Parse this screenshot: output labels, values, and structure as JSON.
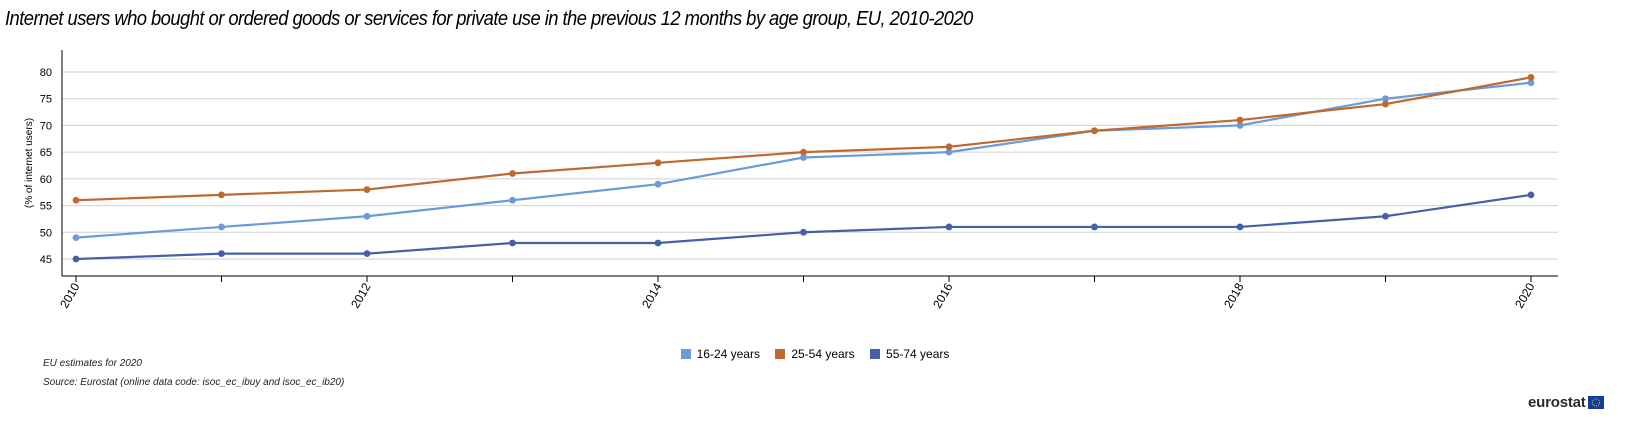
{
  "title": "Internet users who bought or ordered goods or services for private use in the previous 12 months by age group, EU, 2010-2020",
  "chart_data": {
    "type": "line",
    "x": [
      2010,
      2011,
      2012,
      2013,
      2014,
      2015,
      2016,
      2017,
      2018,
      2019,
      2020
    ],
    "xticks": [
      "2010",
      "2012",
      "2014",
      "2016",
      "2018",
      "2020"
    ],
    "yticks": [
      "45",
      "50",
      "55",
      "60",
      "65",
      "70",
      "75",
      "80"
    ],
    "ylabel": "(% of internet users)",
    "ylim": [
      42,
      84
    ],
    "grid": true,
    "legend_position": "bottom-center",
    "series": [
      {
        "name": "16-24 years",
        "color": "#6a9bd8",
        "values": [
          49,
          51,
          53,
          56,
          59,
          64,
          65,
          69,
          70,
          75,
          78
        ]
      },
      {
        "name": "25-54 years",
        "color": "#c0692e",
        "values": [
          56,
          57,
          58,
          61,
          63,
          65,
          66,
          69,
          71,
          74,
          79
        ]
      },
      {
        "name": "55-74 years",
        "color": "#4560a8",
        "values": [
          45,
          46,
          46,
          48,
          48,
          50,
          51,
          51,
          51,
          53,
          57
        ]
      }
    ]
  },
  "notes": {
    "estimate": "EU estimates for 2020",
    "source": "Source: Eurostat (online data code: isoc_ec_ibuy and isoc_ec_ib20)"
  },
  "logo": {
    "text": "eurostat"
  }
}
